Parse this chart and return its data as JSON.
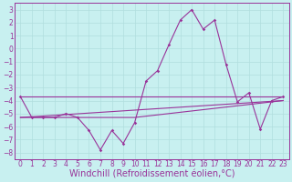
{
  "title": "",
  "xlabel": "Windchill (Refroidissement éolien,°C)",
  "ylabel": "",
  "background_color": "#c8f0f0",
  "grid_color": "#b0dede",
  "line_color": "#993399",
  "spine_color": "#993399",
  "xlim": [
    -0.5,
    23.5
  ],
  "ylim": [
    -8.5,
    3.5
  ],
  "yticks": [
    3,
    2,
    1,
    0,
    -1,
    -2,
    -3,
    -4,
    -5,
    -6,
    -7,
    -8
  ],
  "xticks": [
    0,
    1,
    2,
    3,
    4,
    5,
    6,
    7,
    8,
    9,
    10,
    11,
    12,
    13,
    14,
    15,
    16,
    17,
    18,
    19,
    20,
    21,
    22,
    23
  ],
  "main_x": [
    0,
    1,
    2,
    3,
    4,
    5,
    6,
    7,
    8,
    9,
    10,
    11,
    12,
    13,
    14,
    15,
    16,
    17,
    18,
    19,
    20,
    21,
    22,
    23
  ],
  "main_y": [
    -3.7,
    -5.3,
    -5.3,
    -5.3,
    -5.0,
    -5.3,
    -6.3,
    -7.8,
    -6.3,
    -7.3,
    -5.7,
    -2.5,
    -1.7,
    0.3,
    2.2,
    3.0,
    1.5,
    2.2,
    -1.2,
    -4.1,
    -3.4,
    -6.2,
    -4.0,
    -3.7
  ],
  "trend1_x": [
    0,
    23
  ],
  "trend1_y": [
    -3.7,
    -3.7
  ],
  "trend2_x": [
    0,
    23
  ],
  "trend2_y": [
    -5.3,
    -4.0
  ],
  "trend3_x": [
    0,
    10,
    23
  ],
  "trend3_y": [
    -5.3,
    -5.3,
    -4.0
  ],
  "figsize": [
    3.2,
    2.0
  ],
  "dpi": 100,
  "tick_fontsize": 5.5,
  "xlabel_fontsize": 7.0,
  "lw": 0.8,
  "marker_size": 1.8
}
